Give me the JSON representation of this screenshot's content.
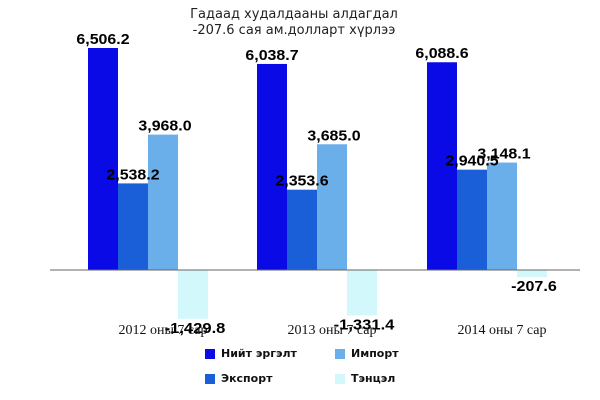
{
  "chart_data": {
    "type": "bar",
    "title_lines": [
      "Гадаад худалдааны алдагдал",
      "-207.6 сая ам.долларт хүрлээ"
    ],
    "categories": [
      "2012 оны 7 сар",
      "2013 оны 7 сар",
      "2014 оны 7 сар"
    ],
    "series": [
      {
        "name": "Нийт эргэлт",
        "color": "#0a0ae6",
        "values": [
          6506.2,
          6038.7,
          6088.6
        ],
        "labels": [
          "6,506.2",
          "6,038.7",
          "6,088.6"
        ]
      },
      {
        "name": "Экспорт",
        "color": "#1a5fd8",
        "values": [
          2538.2,
          2353.6,
          2940.5
        ],
        "labels": [
          "2,538.2",
          "2,353.6",
          "2,940.5"
        ]
      },
      {
        "name": "Импорт",
        "color": "#6aaeea",
        "values": [
          3968.0,
          3685.0,
          3148.1
        ],
        "labels": [
          "3,968.0",
          "3,685.0",
          "3,148.1"
        ]
      },
      {
        "name": "Тэнцэл",
        "color": "#d2f8fc",
        "values": [
          -1429.8,
          -1331.4,
          -207.6
        ],
        "labels": [
          "-1,429.8",
          "-1,331.4",
          "-207.6"
        ]
      }
    ],
    "ylim": [
      -1500,
      6700
    ],
    "grid": false,
    "legend_position": "bottom"
  }
}
